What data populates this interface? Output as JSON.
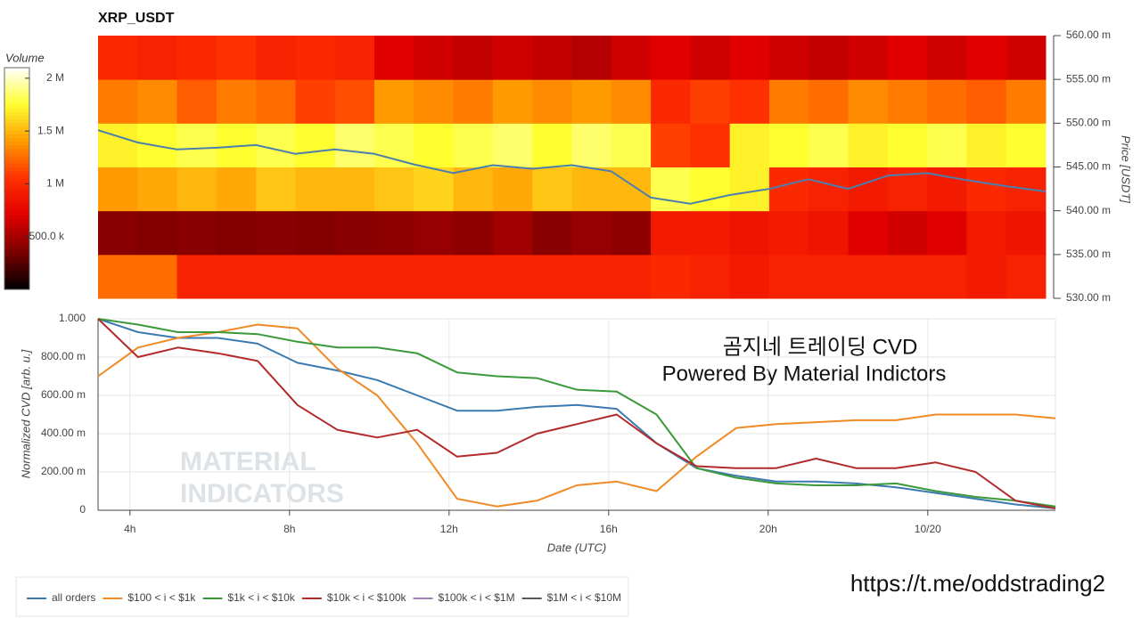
{
  "chart_data": [
    {
      "type": "heatmap",
      "title": "XRP_USDT",
      "colorbar_label": "Volume",
      "colorscale": [
        "#000000",
        "#7a0000",
        "#e00000",
        "#ff3000",
        "#ff9a00",
        "#ffff30",
        "#ffffff"
      ],
      "zlim": [
        0,
        2100000
      ],
      "zticks": [
        {
          "value": 500000,
          "label": "500.0 k"
        },
        {
          "value": 1000000,
          "label": "1 M"
        },
        {
          "value": 1500000,
          "label": "1.5 M"
        },
        {
          "value": 2000000,
          "label": "2 M"
        }
      ],
      "xlim": [
        3.2,
        27.2
      ],
      "x_bins": [
        3.2,
        4.2,
        5.2,
        6.2,
        7.2,
        8.2,
        9.2,
        10.2,
        11.2,
        12.2,
        13.2,
        14.2,
        15.2,
        16.2,
        17.2,
        18.2,
        19.2,
        20.2,
        21.2,
        22.2,
        23.2,
        24.2,
        25.2,
        26.2,
        27.2
      ],
      "y_bins": [
        0.53,
        0.535,
        0.54,
        0.545,
        0.55,
        0.555,
        0.56
      ],
      "z": [
        [
          1250000,
          1250000,
          950000,
          950000,
          950000,
          950000,
          950000,
          950000,
          950000,
          950000,
          950000,
          950000,
          950000,
          950000,
          1000000,
          950000,
          900000,
          950000,
          950000,
          950000,
          950000,
          950000,
          900000,
          950000
        ],
        [
          400000,
          380000,
          400000,
          380000,
          400000,
          380000,
          400000,
          420000,
          450000,
          420000,
          480000,
          400000,
          450000,
          420000,
          900000,
          900000,
          850000,
          900000,
          850000,
          700000,
          650000,
          700000,
          900000,
          850000
        ],
        [
          1400000,
          1450000,
          1500000,
          1450000,
          1550000,
          1500000,
          1500000,
          1550000,
          1600000,
          1500000,
          1450000,
          1550000,
          1500000,
          1500000,
          1800000,
          1750000,
          1700000,
          1000000,
          950000,
          900000,
          950000,
          900000,
          1000000,
          950000
        ],
        [
          1700000,
          1750000,
          1800000,
          1750000,
          1800000,
          1750000,
          1850000,
          1800000,
          1750000,
          1800000,
          1850000,
          1750000,
          1850000,
          1800000,
          1100000,
          1050000,
          1700000,
          1750000,
          1800000,
          1700000,
          1750000,
          1800000,
          1700000,
          1750000
        ],
        [
          1300000,
          1350000,
          1200000,
          1300000,
          1250000,
          1100000,
          1150000,
          1400000,
          1350000,
          1300000,
          1400000,
          1350000,
          1400000,
          1350000,
          1000000,
          1100000,
          1050000,
          1300000,
          1250000,
          1350000,
          1300000,
          1250000,
          1200000,
          1300000
        ],
        [
          1000000,
          950000,
          1000000,
          1050000,
          950000,
          1000000,
          950000,
          700000,
          650000,
          600000,
          650000,
          600000,
          550000,
          650000,
          700000,
          650000,
          700000,
          650000,
          600000,
          650000,
          700000,
          650000,
          700000,
          650000
        ]
      ],
      "y_label": "Price [USDT]",
      "ylim": [
        0.53,
        0.56
      ],
      "yticks": [
        {
          "value": 0.53,
          "label": "530.00 m"
        },
        {
          "value": 0.535,
          "label": "535.00 m"
        },
        {
          "value": 0.54,
          "label": "540.00 m"
        },
        {
          "value": 0.545,
          "label": "545.00 m"
        },
        {
          "value": 0.55,
          "label": "550.00 m"
        },
        {
          "value": 0.555,
          "label": "555.00 m"
        },
        {
          "value": 0.56,
          "label": "560.00 m"
        }
      ],
      "price": {
        "color": "#4a7fae",
        "x": [
          3.2,
          4.2,
          5.2,
          6.2,
          7.2,
          8.2,
          9.2,
          10.2,
          11.2,
          12.2,
          13.2,
          14.2,
          15.2,
          16.2,
          17.2,
          18.2,
          19.2,
          20.2,
          21.2,
          22.2,
          23.2,
          24.2,
          25.2,
          26.2,
          27.2
        ],
        "values": [
          0.5492,
          0.5478,
          0.547,
          0.5472,
          0.5475,
          0.5465,
          0.547,
          0.5465,
          0.5453,
          0.5443,
          0.5452,
          0.5448,
          0.5452,
          0.5445,
          0.5415,
          0.5408,
          0.5418,
          0.5425,
          0.5436,
          0.5425,
          0.544,
          0.5443,
          0.5435,
          0.5428,
          0.5422
        ]
      }
    },
    {
      "type": "line",
      "y_label": "Normalized CVD [arb. u.]",
      "x_label": "Date (UTC)",
      "annotations": [
        "곰지네 트레이딩 CVD",
        "Powered By Material Indictors"
      ],
      "watermark": [
        "MATERIAL",
        "INDICATORS"
      ],
      "footer": "https://t.me/oddstrading2",
      "grid": true,
      "xlim": [
        3.2,
        27.2
      ],
      "xticks": [
        {
          "value": 4,
          "label": "4h"
        },
        {
          "value": 8,
          "label": "8h"
        },
        {
          "value": 12,
          "label": "12h"
        },
        {
          "value": 16,
          "label": "16h"
        },
        {
          "value": 20,
          "label": "20h"
        },
        {
          "value": 24,
          "label": "10/20"
        }
      ],
      "ylim": [
        0,
        1
      ],
      "yticks": [
        0,
        {
          "value": 0.2,
          "label": "200.00 m"
        },
        {
          "value": 0.4,
          "label": "400.00 m"
        },
        {
          "value": 0.6,
          "label": "600.00 m"
        },
        {
          "value": 0.8,
          "label": "800.00 m"
        },
        {
          "value": 1,
          "label": "1.000"
        }
      ],
      "x": [
        3.2,
        4.2,
        5.2,
        6.2,
        7.2,
        8.2,
        9.2,
        10.2,
        11.2,
        12.2,
        13.2,
        14.2,
        15.2,
        16.2,
        17.2,
        18.2,
        19.2,
        20.2,
        21.2,
        22.2,
        23.2,
        24.2,
        25.2,
        26.2,
        27.2
      ],
      "series": [
        {
          "name": "all orders",
          "color": "#3b7ab0",
          "values": [
            1.0,
            0.93,
            0.9,
            0.9,
            0.87,
            0.77,
            0.73,
            0.68,
            0.6,
            0.52,
            0.52,
            0.54,
            0.55,
            0.53,
            0.35,
            0.22,
            0.18,
            0.15,
            0.15,
            0.14,
            0.12,
            0.09,
            0.06,
            0.03,
            0.01
          ]
        },
        {
          "name": "$100 < i < $1k",
          "color": "#f08a24",
          "values": [
            0.7,
            0.85,
            0.9,
            0.93,
            0.97,
            0.95,
            0.74,
            0.6,
            0.35,
            0.06,
            0.02,
            0.05,
            0.13,
            0.15,
            0.1,
            0.28,
            0.43,
            0.45,
            0.46,
            0.47,
            0.47,
            0.5,
            0.5,
            0.5,
            0.48
          ]
        },
        {
          "name": "$1k < i < $10k",
          "color": "#3a9a3a",
          "values": [
            1.0,
            0.97,
            0.93,
            0.93,
            0.92,
            0.88,
            0.85,
            0.85,
            0.82,
            0.72,
            0.7,
            0.69,
            0.63,
            0.62,
            0.5,
            0.22,
            0.17,
            0.14,
            0.13,
            0.13,
            0.14,
            0.1,
            0.07,
            0.05,
            0.02
          ]
        },
        {
          "name": "$10k < i < $100k",
          "color": "#b22a2a",
          "values": [
            1.0,
            0.8,
            0.85,
            0.82,
            0.78,
            0.55,
            0.42,
            0.38,
            0.42,
            0.28,
            0.3,
            0.4,
            0.45,
            0.5,
            0.35,
            0.23,
            0.22,
            0.22,
            0.27,
            0.22,
            0.22,
            0.25,
            0.2,
            0.05,
            0.01
          ]
        },
        {
          "name": "$100k < i < $1M",
          "color": "#9a7fb0",
          "values": [
            null,
            null,
            null,
            null,
            null,
            null,
            null,
            null,
            null,
            null,
            null,
            null,
            null,
            null,
            null,
            null,
            null,
            null,
            null,
            null,
            null,
            null,
            null,
            null,
            null
          ]
        },
        {
          "name": "$1M < i < $10M",
          "color": "#5a5a5a",
          "values": [
            null,
            null,
            null,
            null,
            null,
            null,
            null,
            null,
            null,
            null,
            null,
            null,
            null,
            null,
            null,
            null,
            null,
            null,
            null,
            null,
            null,
            null,
            null,
            null,
            null
          ]
        }
      ]
    }
  ]
}
